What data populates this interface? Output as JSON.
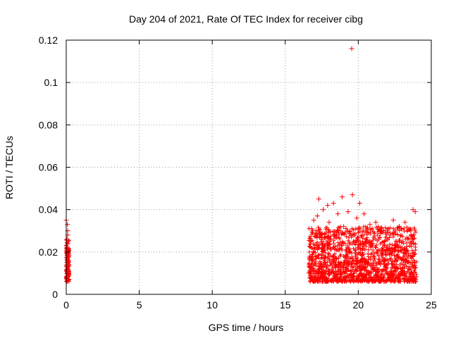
{
  "chart_data": {
    "type": "scatter",
    "title": "Day 204 of 2021, Rate Of TEC Index for receiver cibg",
    "xlabel": "GPS time / hours",
    "ylabel": "ROTI / TECUs",
    "xlim": [
      0,
      25
    ],
    "ylim": [
      0,
      0.12
    ],
    "xticks": [
      0,
      5,
      10,
      15,
      20,
      25
    ],
    "xtick_labels": [
      "0",
      "5",
      "10",
      "15",
      "20",
      "25"
    ],
    "yticks": [
      0,
      0.02,
      0.04,
      0.06,
      0.08,
      0.1,
      0.12
    ],
    "ytick_labels": [
      "0",
      "0.02",
      "0.04",
      "0.06",
      "0.08",
      "0.1",
      "0.12"
    ],
    "grid": true,
    "marker": "+",
    "color": "#ff0000",
    "series": [
      {
        "name": "ROTI",
        "x": [
          0.0,
          0.02,
          0.03,
          0.05,
          0.06,
          0.08,
          0.1,
          0.12,
          0.15,
          0.18,
          0.05,
          0.07,
          0.09,
          0.04,
          0.11,
          0.13,
          0.08,
          0.06,
          0.1,
          0.02,
          16.7,
          16.75,
          16.8,
          16.85,
          16.9,
          16.95,
          17.0,
          17.05,
          17.1,
          17.2,
          17.3,
          17.4,
          17.5,
          17.6,
          17.7,
          17.8,
          17.9,
          18.0,
          18.1,
          18.2,
          18.3,
          18.4,
          18.5,
          18.6,
          18.7,
          18.8,
          18.9,
          19.0,
          19.1,
          19.2,
          19.3,
          19.4,
          19.5,
          19.55,
          19.6,
          19.7,
          19.8,
          19.9,
          20.0,
          20.1,
          20.2,
          20.3,
          20.4,
          20.5,
          20.6,
          20.7,
          20.8,
          20.9,
          21.0,
          21.1,
          21.2,
          21.3,
          21.4,
          21.5,
          21.6,
          21.7,
          21.8,
          21.9,
          22.0,
          22.1,
          22.2,
          22.3,
          22.4,
          22.5,
          22.6,
          22.7,
          22.8,
          22.9,
          23.0,
          23.1,
          23.2,
          23.3,
          23.4,
          23.5,
          23.6,
          23.7,
          23.75,
          23.8,
          23.85,
          23.9
        ],
        "y": [
          0.035,
          0.02,
          0.011,
          0.008,
          0.015,
          0.022,
          0.03,
          0.012,
          0.009,
          0.007,
          0.026,
          0.018,
          0.01,
          0.014,
          0.024,
          0.016,
          0.033,
          0.006,
          0.028,
          0.013,
          0.018,
          0.025,
          0.031,
          0.012,
          0.008,
          0.035,
          0.022,
          0.015,
          0.03,
          0.037,
          0.045,
          0.028,
          0.019,
          0.04,
          0.023,
          0.011,
          0.042,
          0.034,
          0.026,
          0.014,
          0.043,
          0.029,
          0.017,
          0.038,
          0.021,
          0.01,
          0.046,
          0.032,
          0.024,
          0.015,
          0.039,
          0.02,
          0.013,
          0.116,
          0.047,
          0.028,
          0.018,
          0.036,
          0.022,
          0.043,
          0.016,
          0.025,
          0.038,
          0.013,
          0.029,
          0.021,
          0.033,
          0.01,
          0.024,
          0.017,
          0.034,
          0.02,
          0.026,
          0.014,
          0.031,
          0.019,
          0.023,
          0.011,
          0.03,
          0.016,
          0.028,
          0.021,
          0.035,
          0.013,
          0.025,
          0.018,
          0.032,
          0.012,
          0.022,
          0.016,
          0.034,
          0.019,
          0.026,
          0.013,
          0.03,
          0.018,
          0.04,
          0.024,
          0.015,
          0.039
        ]
      }
    ]
  }
}
